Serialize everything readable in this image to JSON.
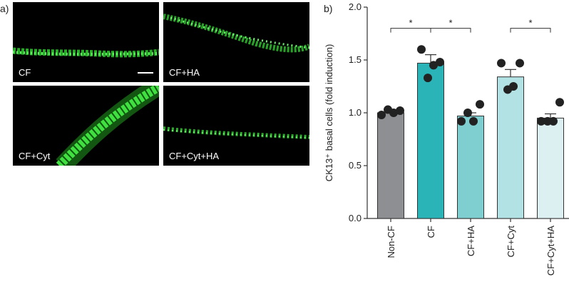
{
  "figure": {
    "panel_a_label": "a)",
    "panel_b_label": "b)",
    "scale_bar": "scale-bar",
    "micrographs": [
      {
        "label": "CF"
      },
      {
        "label": "CF+HA"
      },
      {
        "label": "CF+Cyt"
      },
      {
        "label": "CF+Cyt+HA"
      }
    ]
  },
  "chart_data": {
    "type": "bar",
    "title": "",
    "xlabel": "",
    "ylabel": "CK13⁺ basal cells (fold induction)",
    "ylim": [
      0,
      2.0
    ],
    "yticks": [
      "0.0",
      "0.5",
      "1.0",
      "1.5",
      "2.0"
    ],
    "categories": [
      "Non-CF",
      "CF",
      "CF+HA",
      "CF+Cyt",
      "CF+Cyt+HA"
    ],
    "values": [
      1.0,
      1.47,
      0.97,
      1.34,
      0.95
    ],
    "errors": [
      0.02,
      0.08,
      0.03,
      0.07,
      0.04
    ],
    "colors": [
      "#8d8f92",
      "#2bb4b8",
      "#7fcfd1",
      "#b2e2e3",
      "#ddf0f1"
    ],
    "points": [
      [
        0.98,
        1.03,
        1.0,
        1.02
      ],
      [
        1.6,
        1.33,
        1.45,
        1.48
      ],
      [
        0.92,
        1.0,
        0.92,
        1.08
      ],
      [
        1.47,
        1.22,
        1.25,
        1.47
      ],
      [
        0.92,
        0.92,
        0.92,
        1.1
      ]
    ],
    "significance": [
      {
        "from": 0,
        "to": 1,
        "label": "*",
        "y": 1.8
      },
      {
        "from": 1,
        "to": 2,
        "label": "*",
        "y": 1.8
      },
      {
        "from": 3,
        "to": 4,
        "label": "*",
        "y": 1.8
      }
    ]
  }
}
